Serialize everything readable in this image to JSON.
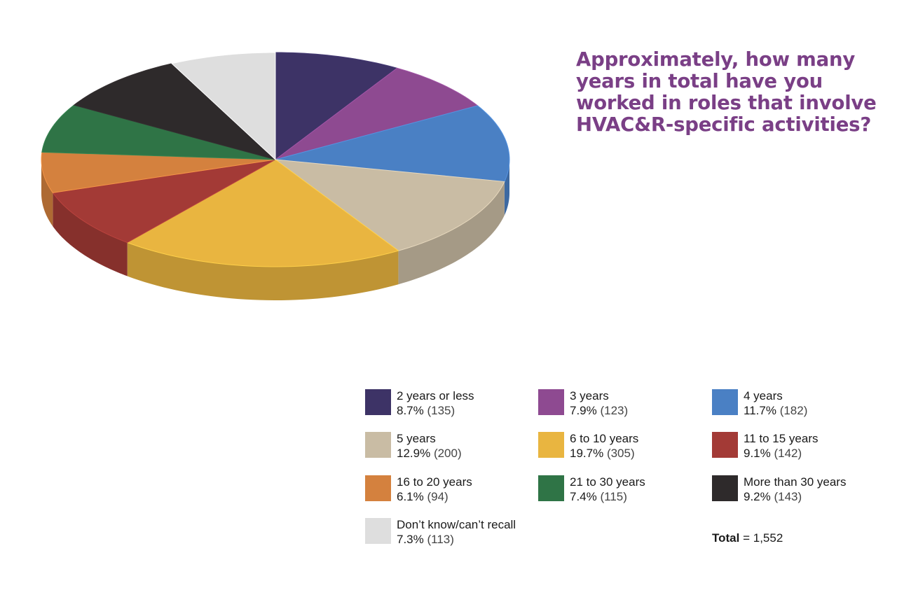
{
  "chart_data": {
    "type": "pie",
    "title": "Approximately, how many years in total have you worked in roles that involve HVAC&R-specific activities?",
    "slices": [
      {
        "label": "2 years or less",
        "percent": 8.7,
        "count": 135,
        "percent_text": "8.7%",
        "count_text": "(135)",
        "color": "#3d3366"
      },
      {
        "label": "3 years",
        "percent": 7.9,
        "count": 123,
        "percent_text": "7.9%",
        "count_text": "(123)",
        "color": "#8e4a91"
      },
      {
        "label": "4 years",
        "percent": 11.7,
        "count": 182,
        "percent_text": "11.7%",
        "count_text": "(182)",
        "color": "#4a80c4"
      },
      {
        "label": "5 years",
        "percent": 12.9,
        "count": 200,
        "percent_text": "12.9%",
        "count_text": "(200)",
        "color": "#c9bca4"
      },
      {
        "label": "6 to 10 years",
        "percent": 19.7,
        "count": 305,
        "percent_text": "19.7%",
        "count_text": "(305)",
        "color": "#e9b540"
      },
      {
        "label": "11 to 15 years",
        "percent": 9.1,
        "count": 142,
        "percent_text": "9.1%",
        "count_text": "(142)",
        "color": "#a33a36"
      },
      {
        "label": "16 to 20 years",
        "percent": 6.1,
        "count": 94,
        "percent_text": "6.1%",
        "count_text": "(94)",
        "color": "#d4813e"
      },
      {
        "label": "21 to 30 years",
        "percent": 7.4,
        "count": 115,
        "percent_text": "7.4%",
        "count_text": "(115)",
        "color": "#2f7446"
      },
      {
        "label": "More than 30 years",
        "percent": 9.2,
        "count": 143,
        "percent_text": "9.2%",
        "count_text": "(143)",
        "color": "#2e2a2b"
      },
      {
        "label": "Don’t know/can’t recall",
        "percent": 7.3,
        "count": 113,
        "percent_text": "7.3%",
        "count_text": "(113)",
        "color": "#dedede"
      }
    ],
    "total_label": "Total",
    "total_value": "= 1,552"
  }
}
